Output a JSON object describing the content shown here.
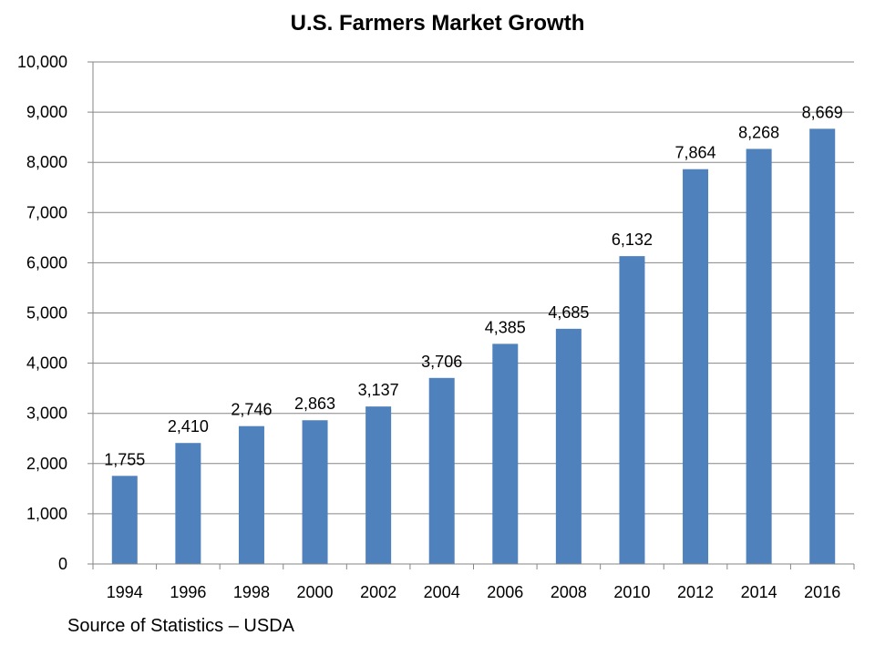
{
  "chart_data": {
    "type": "bar",
    "title": "U.S. Farmers Market Growth",
    "xlabel": "",
    "ylabel": "",
    "categories": [
      "1994",
      "1996",
      "1998",
      "2000",
      "2002",
      "2004",
      "2006",
      "2008",
      "2010",
      "2012",
      "2014",
      "2016"
    ],
    "values": [
      1755,
      2410,
      2746,
      2863,
      3137,
      3706,
      4385,
      4685,
      6132,
      7864,
      8268,
      8669
    ],
    "data_labels": [
      "1,755",
      "2,410",
      "2,746",
      "2,863",
      "3,137",
      "3,706",
      "4,385",
      "4,685",
      "6,132",
      "7,864",
      "8,268",
      "8,669"
    ],
    "ylim": [
      0,
      10000
    ],
    "y_ticks": [
      0,
      1000,
      2000,
      3000,
      4000,
      5000,
      6000,
      7000,
      8000,
      9000,
      10000
    ],
    "y_tick_labels": [
      "0",
      "1,000",
      "2,000",
      "3,000",
      "4,000",
      "5,000",
      "6,000",
      "7,000",
      "8,000",
      "9,000",
      "10,000"
    ],
    "grid": true,
    "legend": "none",
    "colors": {
      "bar": "#4F81BD",
      "grid": "#868686",
      "text": "#000000"
    }
  },
  "source_note": "Source of Statistics – USDA"
}
